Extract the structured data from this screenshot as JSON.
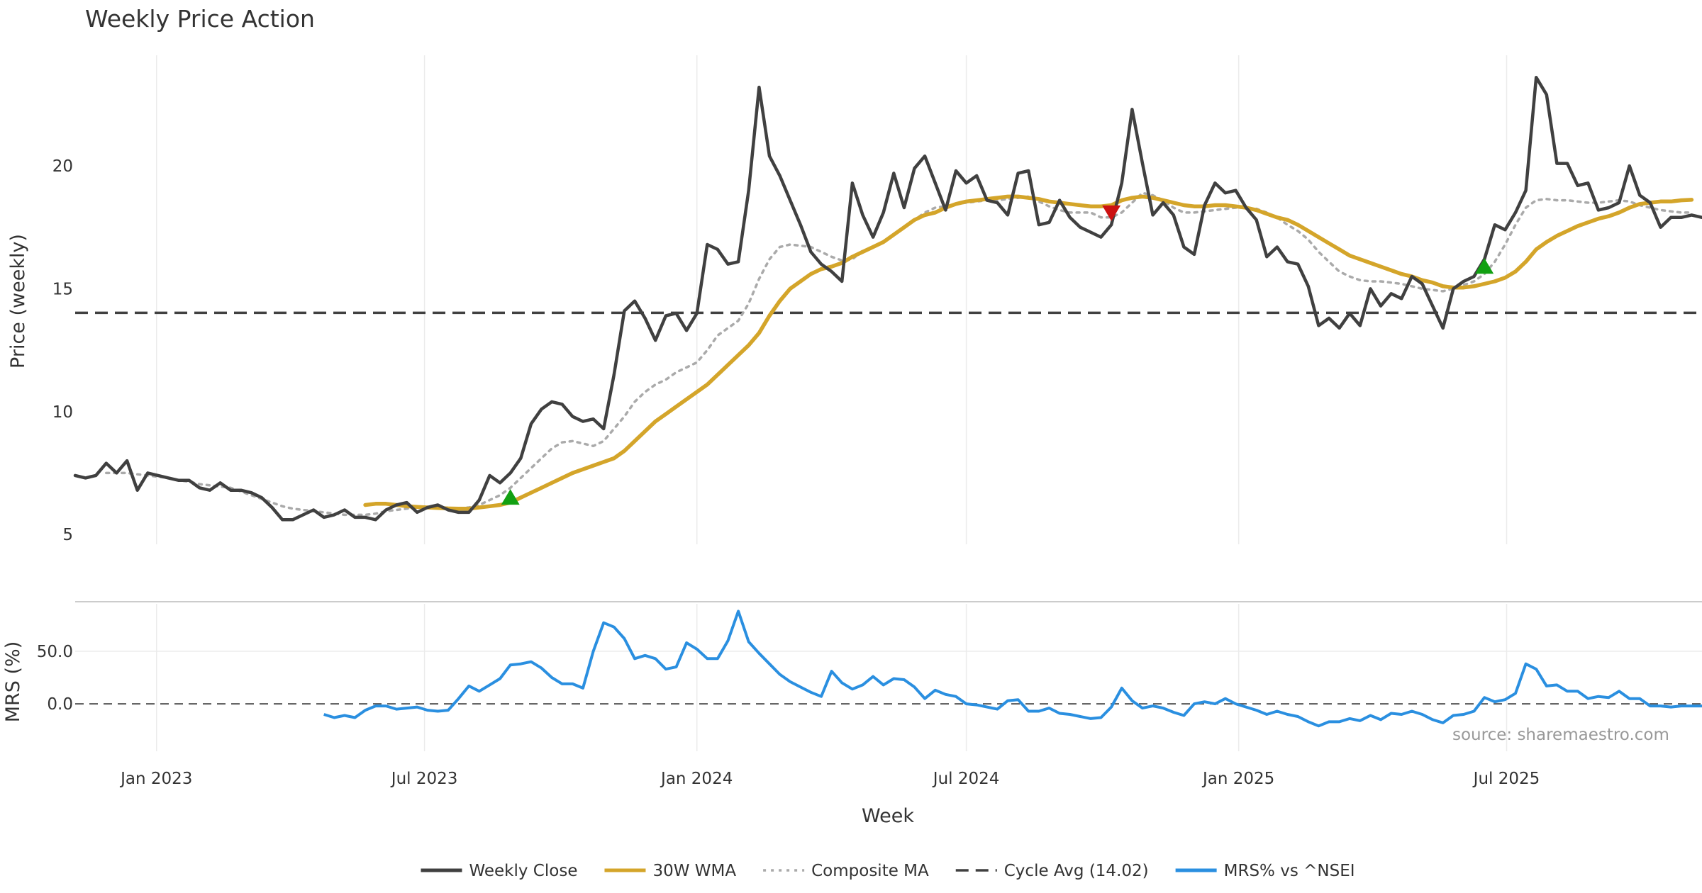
{
  "chart_data": {
    "type": "line",
    "title": "Weekly Price Action",
    "source": "source: sharemaestro.com",
    "xlabel": "Week",
    "x_range": [
      "2022-11-07",
      "2025-11-10"
    ],
    "x_ticks": [
      {
        "date": "2023-01-01",
        "label": "Jan 2023"
      },
      {
        "date": "2023-07-01",
        "label": "Jul 2023"
      },
      {
        "date": "2024-01-01",
        "label": "Jan 2024"
      },
      {
        "date": "2024-07-01",
        "label": "Jul 2024"
      },
      {
        "date": "2025-01-01",
        "label": "Jan 2025"
      },
      {
        "date": "2025-07-01",
        "label": "Jul 2025"
      }
    ],
    "price_panel": {
      "ylabel": "Price (weekly)",
      "ylim": [
        4.6,
        24.5
      ],
      "yticks": [
        5,
        10,
        15,
        20
      ],
      "grid": "vertical",
      "cycle_avg": 14.02,
      "series": [
        {
          "name": "Weekly Close",
          "color": "#404040",
          "start": "2022-11-07",
          "values": [
            7.4,
            7.3,
            7.4,
            7.9,
            7.5,
            8.0,
            6.8,
            7.5,
            7.4,
            7.3,
            7.2,
            7.2,
            6.9,
            6.8,
            7.1,
            6.8,
            6.8,
            6.7,
            6.5,
            6.1,
            5.6,
            5.6,
            5.8,
            6.0,
            5.7,
            5.8,
            6.0,
            5.7,
            5.7,
            5.6,
            6.0,
            6.2,
            6.3,
            5.9,
            6.1,
            6.2,
            6.0,
            5.9,
            5.9,
            6.4,
            7.4,
            7.1,
            7.5,
            8.1,
            9.5,
            10.1,
            10.4,
            10.3,
            9.8,
            9.6,
            9.7,
            9.3,
            11.5,
            14.1,
            14.5,
            13.8,
            12.9,
            13.9,
            14.0,
            13.3,
            14.0,
            16.8,
            16.6,
            16.0,
            16.1,
            19.0,
            23.2,
            20.4,
            19.6,
            18.6,
            17.6,
            16.5,
            16.0,
            15.7,
            15.3,
            19.3,
            18.0,
            17.1,
            18.1,
            19.7,
            18.3,
            19.9,
            20.4,
            19.3,
            18.2,
            19.8,
            19.3,
            19.6,
            18.6,
            18.5,
            18.0,
            19.7,
            19.8,
            17.6,
            17.7,
            18.6,
            17.9,
            17.5,
            17.3,
            17.1,
            17.6,
            19.3,
            22.3,
            20.1,
            18.0,
            18.5,
            18.0,
            16.7,
            16.4,
            18.4,
            19.3,
            18.9,
            19.0,
            18.3,
            17.8,
            16.3,
            16.7,
            16.1,
            16.0,
            15.1,
            13.5,
            13.8,
            13.4,
            14.0,
            13.5,
            15.0,
            14.3,
            14.8,
            14.6,
            15.5,
            15.2,
            14.3,
            13.4,
            15.0,
            15.3,
            15.5,
            16.2,
            17.6,
            17.4,
            18.1,
            19.0,
            23.6,
            22.9,
            20.1,
            20.1,
            19.2,
            19.3,
            18.2,
            18.3,
            18.5,
            20.0,
            18.8,
            18.5,
            17.5,
            17.9,
            17.9,
            18.0,
            17.9,
            17.9
          ]
        },
        {
          "name": "30W WMA",
          "color": "#D4A52A",
          "start": "2023-05-22",
          "values": [
            6.2,
            6.25,
            6.25,
            6.2,
            6.15,
            6.12,
            6.1,
            6.08,
            6.06,
            6.05,
            6.05,
            6.1,
            6.15,
            6.2,
            6.3,
            6.5,
            6.7,
            6.9,
            7.1,
            7.3,
            7.5,
            7.65,
            7.8,
            7.95,
            8.1,
            8.4,
            8.8,
            9.2,
            9.6,
            9.9,
            10.2,
            10.5,
            10.8,
            11.1,
            11.5,
            11.9,
            12.3,
            12.7,
            13.2,
            13.9,
            14.5,
            15.0,
            15.3,
            15.6,
            15.8,
            15.9,
            16.05,
            16.3,
            16.5,
            16.7,
            16.9,
            17.2,
            17.5,
            17.8,
            18.0,
            18.1,
            18.3,
            18.45,
            18.55,
            18.6,
            18.65,
            18.7,
            18.75,
            18.75,
            18.7,
            18.65,
            18.55,
            18.5,
            18.45,
            18.4,
            18.35,
            18.35,
            18.4,
            18.6,
            18.7,
            18.75,
            18.7,
            18.6,
            18.5,
            18.4,
            18.35,
            18.35,
            18.4,
            18.4,
            18.35,
            18.3,
            18.2,
            18.05,
            17.9,
            17.8,
            17.6,
            17.35,
            17.1,
            16.85,
            16.6,
            16.35,
            16.2,
            16.05,
            15.9,
            15.75,
            15.6,
            15.5,
            15.35,
            15.25,
            15.1,
            15.05,
            15.05,
            15.1,
            15.2,
            15.3,
            15.45,
            15.7,
            16.1,
            16.6,
            16.9,
            17.15,
            17.35,
            17.55,
            17.7,
            17.85,
            17.95,
            18.1,
            18.3,
            18.45,
            18.5,
            18.55,
            18.55,
            18.6,
            18.62
          ]
        },
        {
          "name": "Composite MA",
          "color": "#aaaaaa",
          "start": "2022-11-28",
          "values": [
            7.5,
            7.5,
            7.5,
            7.45,
            7.4,
            7.35,
            7.3,
            7.2,
            7.15,
            7.05,
            7.0,
            6.95,
            6.9,
            6.75,
            6.6,
            6.45,
            6.3,
            6.15,
            6.05,
            6.0,
            5.95,
            5.9,
            5.85,
            5.8,
            5.8,
            5.8,
            5.85,
            5.95,
            6.0,
            6.05,
            6.1,
            6.1,
            6.1,
            6.05,
            6.05,
            6.1,
            6.2,
            6.4,
            6.6,
            6.9,
            7.3,
            7.7,
            8.1,
            8.5,
            8.75,
            8.8,
            8.7,
            8.6,
            8.8,
            9.3,
            9.8,
            10.4,
            10.8,
            11.1,
            11.3,
            11.6,
            11.8,
            12.0,
            12.5,
            13.1,
            13.4,
            13.7,
            14.4,
            15.4,
            16.2,
            16.7,
            16.8,
            16.75,
            16.7,
            16.5,
            16.3,
            16.15,
            16.2,
            16.55,
            16.7,
            16.9,
            17.2,
            17.5,
            17.8,
            18.1,
            18.3,
            18.35,
            18.45,
            18.5,
            18.55,
            18.6,
            18.6,
            18.65,
            18.7,
            18.75,
            18.55,
            18.35,
            18.2,
            18.1,
            18.1,
            18.1,
            17.9,
            17.9,
            18.1,
            18.5,
            18.9,
            18.8,
            18.6,
            18.3,
            18.1,
            18.1,
            18.15,
            18.2,
            18.25,
            18.3,
            18.3,
            18.25,
            18.1,
            17.9,
            17.6,
            17.35,
            17.0,
            16.5,
            16.1,
            15.7,
            15.5,
            15.35,
            15.3,
            15.3,
            15.25,
            15.2,
            15.1,
            15.0,
            14.95,
            14.9,
            15.0,
            15.15,
            15.3,
            15.6,
            16.1,
            16.8,
            17.6,
            18.3,
            18.6,
            18.65,
            18.6,
            18.6,
            18.55,
            18.5,
            18.5,
            18.55,
            18.6,
            18.55,
            18.4,
            18.3,
            18.2,
            18.15,
            18.1,
            18.1
          ]
        }
      ],
      "markers": [
        {
          "date": "2023-08-28",
          "value": 6.5,
          "type": "buy",
          "color": "#12A012"
        },
        {
          "date": "2024-10-07",
          "value": 18.1,
          "type": "sell",
          "color": "#CC1111"
        },
        {
          "date": "2025-06-16",
          "value": 15.9,
          "type": "buy",
          "color": "#12A012"
        }
      ]
    },
    "mrs_panel": {
      "ylabel": "MRS (%)",
      "ylim": [
        -45,
        95
      ],
      "yticks": [
        0.0,
        50.0
      ],
      "zero_line": 0,
      "series": [
        {
          "name": "MRS% vs ^NSEI",
          "color": "#2A8FE0",
          "start": "2023-04-24",
          "values": [
            -10,
            -13,
            -11,
            -13,
            -6,
            -2,
            -2,
            -5,
            -4,
            -3,
            -6,
            -7,
            -6,
            5,
            17,
            12,
            18,
            24,
            37,
            38,
            40,
            34,
            25,
            19,
            19,
            15,
            50,
            77,
            73,
            62,
            43,
            46,
            43,
            33,
            35,
            58,
            52,
            43,
            43,
            60,
            88,
            59,
            48,
            38,
            28,
            21,
            16,
            11,
            7,
            31,
            20,
            14,
            18,
            26,
            18,
            24,
            23,
            16,
            5,
            13,
            9,
            7,
            0,
            -1,
            -3,
            -5,
            3,
            4,
            -7,
            -7,
            -4,
            -9,
            -10,
            -12,
            -14,
            -13,
            -3,
            15,
            3,
            -4,
            -2,
            -4,
            -8,
            -11,
            0,
            2,
            0,
            5,
            0,
            -3,
            -6,
            -10,
            -7,
            -10,
            -12,
            -17,
            -21,
            -17,
            -17,
            -14,
            -16,
            -11,
            -15,
            -9,
            -10,
            -7,
            -10,
            -15,
            -18,
            -11,
            -10,
            -7,
            6,
            2,
            4,
            10,
            38,
            33,
            17,
            18,
            12,
            12,
            5,
            7,
            6,
            12,
            5,
            5,
            -2,
            -2,
            -3,
            -2,
            -2,
            -2,
            -3,
            -2
          ]
        }
      ]
    },
    "legend": {
      "placement": "bottom",
      "items": [
        {
          "label": "Weekly Close",
          "color": "#404040",
          "style": "solid"
        },
        {
          "label": "30W WMA",
          "color": "#D4A52A",
          "style": "solid"
        },
        {
          "label": "Composite MA",
          "color": "#aaaaaa",
          "style": "dotted"
        },
        {
          "label": "Cycle Avg (14.02)",
          "color": "#404040",
          "style": "dashed"
        },
        {
          "label": "MRS% vs ^NSEI",
          "color": "#2A8FE0",
          "style": "solid"
        }
      ]
    }
  }
}
